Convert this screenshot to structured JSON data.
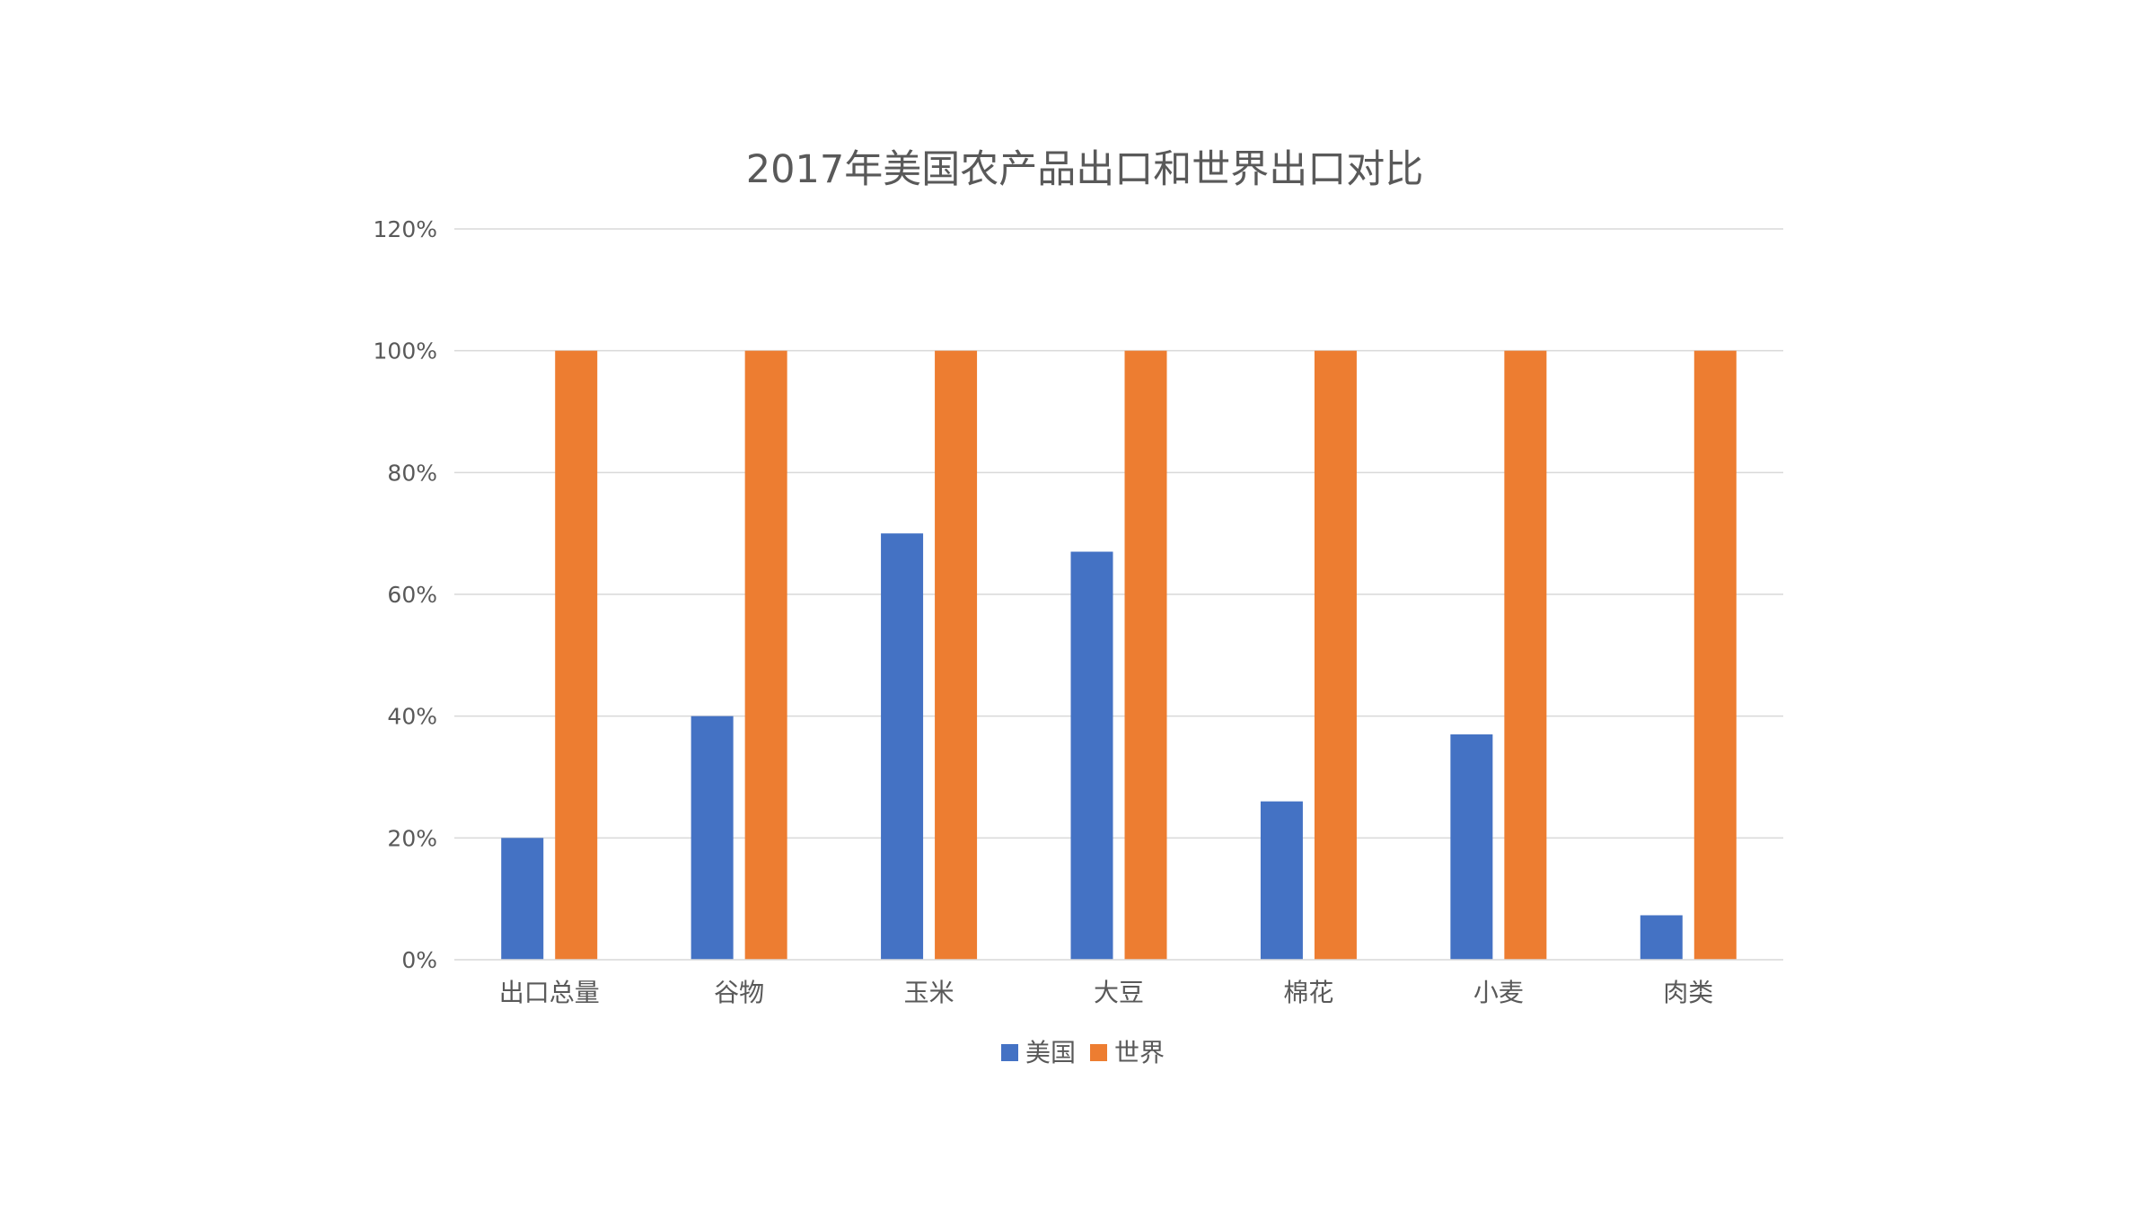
{
  "chart_data": {
    "type": "bar",
    "title": "2017年美国农产品出口和世界出口对比",
    "xlabel": "",
    "ylabel": "",
    "categories": [
      "出口总量",
      "谷物",
      "玉米",
      "大豆",
      "棉花",
      "小麦",
      "肉类"
    ],
    "series": [
      {
        "name": "美国",
        "color": "#4472C4",
        "values": [
          20,
          40,
          70,
          67,
          26,
          37,
          7.3
        ]
      },
      {
        "name": "世界",
        "color": "#ED7D31",
        "values": [
          100,
          100,
          100,
          100,
          100,
          100,
          100
        ]
      }
    ],
    "ylim": [
      0,
      120
    ],
    "yticks": [
      0,
      20,
      40,
      60,
      80,
      100,
      120
    ],
    "ytick_labels": [
      "0%",
      "20%",
      "40%",
      "60%",
      "80%",
      "100%",
      "120%"
    ],
    "grid": true,
    "legend_position": "bottom",
    "gridline_color": "#D9D9D9",
    "text_color": "#595959"
  }
}
